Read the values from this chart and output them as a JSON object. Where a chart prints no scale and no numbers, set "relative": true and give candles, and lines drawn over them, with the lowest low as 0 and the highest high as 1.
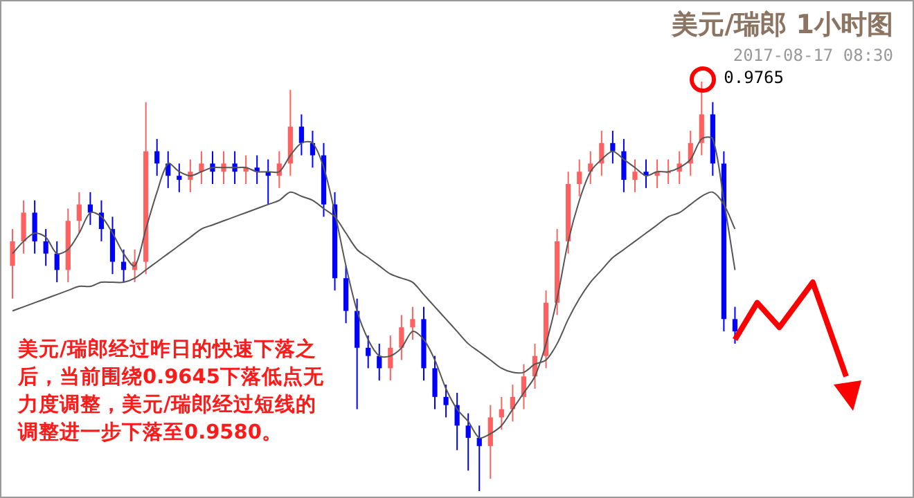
{
  "chart_data": {
    "type": "candlestick",
    "title": "美元/瑞郎 1小时图",
    "subtitle": "2017-08-17 08:30",
    "relative": true,
    "legend": false,
    "categories": [
      null,
      null,
      null,
      null,
      null,
      null,
      null,
      null,
      null,
      null,
      null,
      null,
      null,
      null,
      null,
      null,
      null,
      null,
      null,
      null,
      null,
      null,
      null,
      null,
      null,
      null,
      null,
      null,
      null,
      null,
      null,
      null,
      null,
      null,
      null,
      null,
      null,
      null,
      null,
      null,
      null,
      null,
      null,
      null,
      null,
      null,
      null,
      null,
      null,
      null,
      null,
      null,
      null,
      null,
      null,
      null,
      null,
      null,
      null,
      null,
      null,
      null,
      null,
      null,
      null,
      null,
      null,
      null,
      null,
      null,
      null,
      null,
      null,
      null,
      null,
      null
    ],
    "ohlc": [
      [
        0.55,
        0.64,
        0.47,
        0.61
      ],
      [
        0.61,
        0.71,
        0.58,
        0.68
      ],
      [
        0.68,
        0.71,
        0.58,
        0.61
      ],
      [
        0.61,
        0.64,
        0.55,
        0.58
      ],
      [
        0.58,
        0.61,
        0.51,
        0.54
      ],
      [
        0.54,
        0.69,
        0.51,
        0.66
      ],
      [
        0.66,
        0.73,
        0.63,
        0.7
      ],
      [
        0.7,
        0.73,
        0.65,
        0.68
      ],
      [
        0.68,
        0.71,
        0.61,
        0.64
      ],
      [
        0.64,
        0.67,
        0.53,
        0.56
      ],
      [
        0.56,
        0.59,
        0.51,
        0.54
      ],
      [
        0.54,
        0.59,
        0.51,
        0.56
      ],
      [
        0.56,
        0.95,
        0.53,
        0.83
      ],
      [
        0.83,
        0.86,
        0.77,
        0.8
      ],
      [
        0.8,
        0.83,
        0.74,
        0.77
      ],
      [
        0.77,
        0.8,
        0.73,
        0.76
      ],
      [
        0.76,
        0.81,
        0.73,
        0.78
      ],
      [
        0.78,
        0.83,
        0.75,
        0.8
      ],
      [
        0.8,
        0.83,
        0.75,
        0.78
      ],
      [
        0.78,
        0.83,
        0.75,
        0.8
      ],
      [
        0.8,
        0.83,
        0.75,
        0.78
      ],
      [
        0.78,
        0.82,
        0.75,
        0.79
      ],
      [
        0.79,
        0.82,
        0.75,
        0.78
      ],
      [
        0.78,
        0.81,
        0.7,
        0.77
      ],
      [
        0.77,
        0.83,
        0.74,
        0.8
      ],
      [
        0.8,
        0.98,
        0.77,
        0.89
      ],
      [
        0.89,
        0.92,
        0.82,
        0.85
      ],
      [
        0.85,
        0.88,
        0.79,
        0.82
      ],
      [
        0.82,
        0.85,
        0.67,
        0.7
      ],
      [
        0.7,
        0.73,
        0.49,
        0.52
      ],
      [
        0.52,
        0.55,
        0.41,
        0.44
      ],
      [
        0.44,
        0.47,
        0.2,
        0.35
      ],
      [
        0.35,
        0.38,
        0.3,
        0.33
      ],
      [
        0.33,
        0.36,
        0.27,
        0.3
      ],
      [
        0.3,
        0.38,
        0.27,
        0.35
      ],
      [
        0.35,
        0.43,
        0.32,
        0.4
      ],
      [
        0.4,
        0.45,
        0.37,
        0.42
      ],
      [
        0.42,
        0.45,
        0.27,
        0.3
      ],
      [
        0.3,
        0.33,
        0.2,
        0.23
      ],
      [
        0.23,
        0.26,
        0.18,
        0.21
      ],
      [
        0.21,
        0.24,
        0.1,
        0.16
      ],
      [
        0.16,
        0.19,
        0.05,
        0.13
      ],
      [
        0.13,
        0.16,
        0,
        0.11
      ],
      [
        0.11,
        0.21,
        0.03,
        0.18
      ],
      [
        0.18,
        0.23,
        0.15,
        0.2
      ],
      [
        0.2,
        0.26,
        0.17,
        0.23
      ],
      [
        0.23,
        0.31,
        0.2,
        0.28
      ],
      [
        0.28,
        0.36,
        0.25,
        0.33
      ],
      [
        0.33,
        0.49,
        0.3,
        0.46
      ],
      [
        0.46,
        0.64,
        0.43,
        0.61
      ],
      [
        0.61,
        0.78,
        0.58,
        0.75
      ],
      [
        0.75,
        0.81,
        0.72,
        0.78
      ],
      [
        0.78,
        0.83,
        0.75,
        0.8
      ],
      [
        0.8,
        0.88,
        0.77,
        0.85
      ],
      [
        0.85,
        0.88,
        0.8,
        0.83
      ],
      [
        0.83,
        0.86,
        0.73,
        0.76
      ],
      [
        0.76,
        0.81,
        0.73,
        0.78
      ],
      [
        0.78,
        0.81,
        0.74,
        0.77
      ],
      [
        0.77,
        0.81,
        0.74,
        0.78
      ],
      [
        0.78,
        0.81,
        0.75,
        0.78
      ],
      [
        0.78,
        0.83,
        0.75,
        0.8
      ],
      [
        0.8,
        0.88,
        0.77,
        0.85
      ],
      [
        0.85,
        1,
        0.82,
        0.92
      ],
      [
        0.92,
        0.95,
        0.77,
        0.8
      ],
      [
        0.8,
        0.83,
        0.39,
        0.42
      ],
      [
        0.42,
        0.45,
        0.36,
        0.39
      ],
      null,
      null,
      null,
      null,
      null,
      null,
      null,
      null,
      null,
      null
    ],
    "colors": [
      "#ff6060",
      "#ff6060",
      "#0000ff",
      "#0000ff",
      "#0000ff",
      "#ff6060",
      "#ff6060",
      "#0000ff",
      "#0000ff",
      "#0000ff",
      "#0000ff",
      "#ff6060",
      "#ff6060",
      "#0000ff",
      "#0000ff",
      "#0000ff",
      "#ff6060",
      "#ff6060",
      "#0000ff",
      "#ff6060",
      "#0000ff",
      "#ff6060",
      "#0000ff",
      "#0000ff",
      "#ff6060",
      "#ff6060",
      "#0000ff",
      "#0000ff",
      "#0000ff",
      "#0000ff",
      "#0000ff",
      "#0000ff",
      "#0000ff",
      "#0000ff",
      "#ff6060",
      "#ff6060",
      "#ff6060",
      "#0000ff",
      "#0000ff",
      "#0000ff",
      "#0000ff",
      "#0000ff",
      "#0000ff",
      "#ff6060",
      "#ff6060",
      "#ff6060",
      "#ff6060",
      "#ff6060",
      "#ff6060",
      "#ff6060",
      "#ff6060",
      "#ff6060",
      "#ff6060",
      "#ff6060",
      "#0000ff",
      "#0000ff",
      "#ff6060",
      "#0000ff",
      "#ff6060",
      "#ff6060",
      "#ff6060",
      "#ff6060",
      "#ff6060",
      "#0000ff",
      "#0000ff",
      "#0000ff",
      null,
      null,
      null,
      null,
      null,
      null,
      null,
      null,
      null,
      null
    ],
    "series": [
      {
        "type": "line",
        "color": "#555555",
        "values": [
          0.58,
          0.61,
          0.63,
          0.62,
          0.58,
          0.59,
          0.63,
          0.68,
          0.67,
          0.63,
          0.58,
          0.55,
          0.64,
          0.73,
          0.8,
          0.78,
          0.77,
          0.78,
          0.79,
          0.79,
          0.79,
          0.79,
          0.78,
          0.78,
          0.78,
          0.82,
          0.85,
          0.85,
          0.79,
          0.68,
          0.55,
          0.44,
          0.37,
          0.33,
          0.33,
          0.35,
          0.39,
          0.37,
          0.32,
          0.25,
          0.2,
          0.17,
          0.13,
          0.14,
          0.16,
          0.2,
          0.24,
          0.28,
          0.36,
          0.47,
          0.61,
          0.71,
          0.78,
          0.81,
          0.83,
          0.81,
          0.79,
          0.77,
          0.78,
          0.78,
          0.79,
          0.81,
          0.86,
          0.86,
          0.71,
          0.54,
          null,
          null,
          null,
          null,
          null,
          null,
          null,
          null,
          null,
          null
        ]
      },
      {
        "type": "line",
        "color": "#555555",
        "values": [
          0.44,
          0.45,
          0.46,
          0.47,
          0.48,
          0.49,
          0.5,
          0.5,
          0.51,
          0.51,
          0.51,
          0.52,
          0.54,
          0.56,
          0.58,
          0.6,
          0.62,
          0.64,
          0.65,
          0.66,
          0.67,
          0.68,
          0.69,
          0.7,
          0.71,
          0.73,
          0.72,
          0.71,
          0.69,
          0.67,
          0.63,
          0.59,
          0.57,
          0.55,
          0.53,
          0.52,
          0.51,
          0.48,
          0.45,
          0.42,
          0.39,
          0.36,
          0.34,
          0.32,
          0.3,
          0.29,
          0.29,
          0.31,
          0.32,
          0.36,
          0.42,
          0.47,
          0.51,
          0.54,
          0.57,
          0.59,
          0.61,
          0.63,
          0.65,
          0.67,
          0.68,
          0.7,
          0.72,
          0.73,
          0.7,
          0.64,
          null,
          null,
          null,
          null,
          null,
          null,
          null,
          null,
          null,
          null
        ]
      },
      {
        "type": "line",
        "color": "#ff0000",
        "values": [
          null,
          null,
          null,
          null,
          null,
          null,
          null,
          null,
          null,
          null,
          null,
          null,
          null,
          null,
          null,
          null,
          null,
          null,
          null,
          null,
          null,
          null,
          null,
          null,
          null,
          null,
          null,
          null,
          null,
          null,
          null,
          null,
          null,
          null,
          null,
          null,
          null,
          null,
          null,
          null,
          null,
          null,
          null,
          null,
          null,
          null,
          null,
          null,
          null,
          null,
          null,
          null,
          null,
          null,
          null,
          null,
          null,
          null,
          null,
          null,
          null,
          null,
          null,
          null,
          null,
          0.37,
          null,
          0.46,
          null,
          0.4,
          null,
          null,
          0.51,
          null,
          null,
          0.28
        ]
      }
    ],
    "annotations": [
      "0.9765",
      "美元/瑞郎经过昨日的快速下落之后，当前围绕0.9645下落低点无力度调整，美元/瑞郎经过短线的调整进一步下落至0.9580。"
    ]
  }
}
